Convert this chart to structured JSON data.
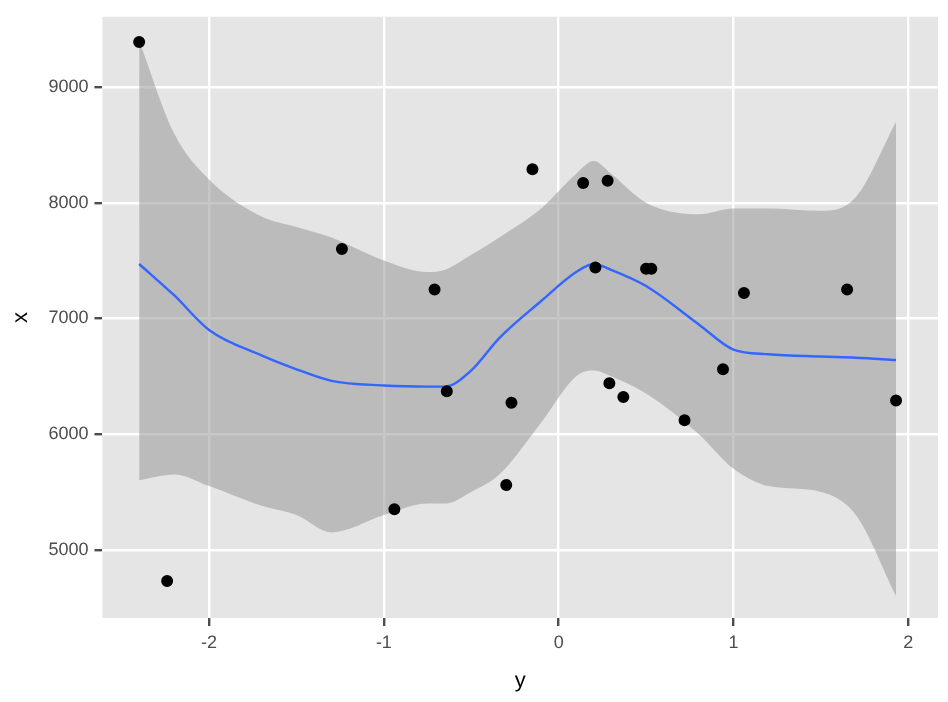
{
  "chart_data": {
    "type": "scatter",
    "xlabel": "y",
    "ylabel": "x",
    "xlim": [
      -2.61,
      2.17
    ],
    "xticks": [
      -2,
      -1,
      0,
      1,
      2
    ],
    "ylim": [
      4410,
      9607
    ],
    "yticks": [
      5000,
      6000,
      7000,
      8000,
      9000
    ],
    "grid": true,
    "marker": "circle",
    "series": [
      {
        "color": "#000000",
        "x": [
          -2.4,
          -2.24,
          -1.24,
          -0.71,
          -0.64,
          -0.94,
          -0.15,
          0.14,
          0.28,
          0.21,
          0.5,
          0.53,
          1.06,
          1.65,
          -0.27,
          -0.3,
          0.29,
          0.37,
          0.72,
          0.94,
          1.93
        ],
        "values": [
          9390,
          4730,
          7600,
          7250,
          6370,
          5350,
          8290,
          8170,
          8190,
          7440,
          7430,
          7430,
          7220,
          7250,
          6270,
          5560,
          6440,
          6320,
          6120,
          6560,
          6290
        ]
      },
      {
        "type": "line",
        "color": "#3366ff",
        "marker": "none",
        "x": [
          -2.4,
          -2.2,
          -2.0,
          -1.7,
          -1.5,
          -1.3,
          -1.0,
          -0.75,
          -0.65,
          -0.5,
          -0.34,
          -0.1,
          0.1,
          0.2,
          0.3,
          0.5,
          0.8,
          1.0,
          1.2,
          1.5,
          1.7,
          1.93
        ],
        "values": [
          7470,
          7200,
          6900,
          6680,
          6560,
          6460,
          6420,
          6410,
          6410,
          6550,
          6830,
          7150,
          7400,
          7470,
          7420,
          7280,
          6950,
          6730,
          6690,
          6670,
          6660,
          6640
        ],
        "lower": [
          5600,
          5650,
          5550,
          5380,
          5300,
          5150,
          5300,
          5400,
          5400,
          5500,
          5650,
          6100,
          6500,
          6550,
          6500,
          6350,
          6000,
          5700,
          5550,
          5500,
          5300,
          4600
        ],
        "upper": [
          9400,
          8600,
          8200,
          7880,
          7790,
          7700,
          7500,
          7400,
          7420,
          7550,
          7700,
          7950,
          8250,
          8360,
          8250,
          8000,
          7900,
          7950,
          7950,
          7930,
          8050,
          8700
        ]
      }
    ]
  }
}
